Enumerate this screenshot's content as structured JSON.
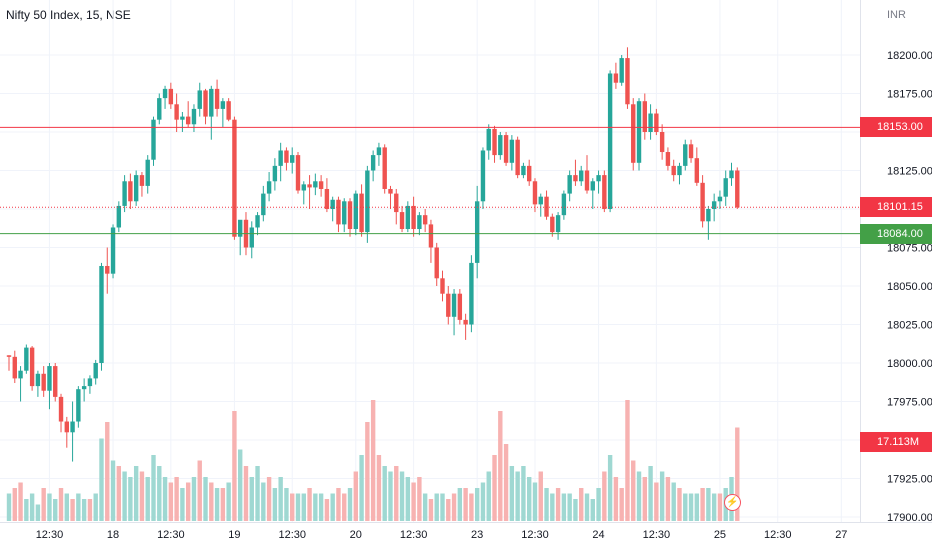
{
  "title": "Nifty 50 Index, 15, NSE",
  "currency": "INR",
  "colors": {
    "up": "#26a69a",
    "down": "#ef5350",
    "vol_up": "#9fd8d2",
    "vol_down": "#f7b2b1",
    "resistance": "#f23645",
    "support": "#43a047",
    "last_price": "#f23645",
    "volume_badge": "#f23645"
  },
  "badges": {
    "resistance": "18153.00",
    "last_price": "18101.15",
    "support": "18084.00",
    "volume": "17.113M"
  },
  "chart_data": {
    "type": "candlestick",
    "title": "Nifty 50 Index, 15, NSE",
    "currency": "INR",
    "y_ticks": [
      17900,
      17925,
      17950,
      17975,
      18000,
      18025,
      18050,
      18075,
      18100,
      18125,
      18150,
      18175,
      18200
    ],
    "y_tick_labels": [
      "17900.00",
      "17925.00",
      "17950.00",
      "17975.00",
      "18000.00",
      "18025.00",
      "18050.00",
      "18075.00",
      "18100.00",
      "18125.00",
      "18150.00",
      "18175.00",
      "18200.00"
    ],
    "ylim": [
      17900,
      18220
    ],
    "x_tick_labels": [
      "12:30",
      "18",
      "12:30",
      "19",
      "12:30",
      "20",
      "12:30",
      "23",
      "12:30",
      "24",
      "12:30",
      "25",
      "12:30",
      "27"
    ],
    "x_tick_bar_index": [
      7,
      18,
      28,
      39,
      49,
      60,
      70,
      81,
      91,
      102,
      112,
      123,
      133,
      144
    ],
    "horizontal_lines": [
      {
        "label": "resistance",
        "value": 18153.0,
        "style": "solid"
      },
      {
        "label": "support",
        "value": 18084.0,
        "style": "solid"
      },
      {
        "label": "last_price",
        "value": 18101.15,
        "style": "dotted"
      }
    ],
    "last_volume": "17.113M",
    "candles": [
      [
        18005,
        18005,
        17995,
        18004
      ],
      [
        18004,
        18008,
        17987,
        17990
      ],
      [
        17990,
        17998,
        17975,
        17995
      ],
      [
        17995,
        18012,
        17993,
        18010
      ],
      [
        18010,
        18011,
        17982,
        17985
      ],
      [
        17985,
        17995,
        17978,
        17993
      ],
      [
        17993,
        17998,
        17978,
        17982
      ],
      [
        17982,
        18000,
        17970,
        17998
      ],
      [
        17998,
        18000,
        17975,
        17978
      ],
      [
        17978,
        17980,
        17955,
        17962
      ],
      [
        17962,
        17965,
        17945,
        17955
      ],
      [
        17955,
        17975,
        17936,
        17962
      ],
      [
        17962,
        17985,
        17958,
        17983
      ],
      [
        17983,
        17990,
        17975,
        17985
      ],
      [
        17985,
        17992,
        17980,
        17990
      ],
      [
        17990,
        18002,
        17986,
        18000
      ],
      [
        18000,
        18065,
        17995,
        18063
      ],
      [
        18063,
        18075,
        18045,
        18058
      ],
      [
        18058,
        18090,
        18055,
        18088
      ],
      [
        18088,
        18105,
        18085,
        18102
      ],
      [
        18102,
        18122,
        18098,
        18118
      ],
      [
        18118,
        18123,
        18100,
        18105
      ],
      [
        18105,
        18125,
        18102,
        18122
      ],
      [
        18122,
        18124,
        18108,
        18115
      ],
      [
        18115,
        18135,
        18110,
        18132
      ],
      [
        18132,
        18160,
        18128,
        18158
      ],
      [
        18158,
        18175,
        18155,
        18172
      ],
      [
        18172,
        18180,
        18165,
        18178
      ],
      [
        18178,
        18182,
        18165,
        18168
      ],
      [
        18168,
        18175,
        18150,
        18158
      ],
      [
        18158,
        18163,
        18150,
        18160
      ],
      [
        18160,
        18170,
        18153,
        18155
      ],
      [
        18155,
        18168,
        18150,
        18165
      ],
      [
        18165,
        18182,
        18160,
        18177
      ],
      [
        18177,
        18178,
        18155,
        18160
      ],
      [
        18160,
        18180,
        18145,
        18178
      ],
      [
        18178,
        18184,
        18160,
        18165
      ],
      [
        18165,
        18172,
        18153,
        18170
      ],
      [
        18170,
        18172,
        18157,
        18158
      ],
      [
        18158,
        18160,
        18080,
        18082
      ],
      [
        18082,
        18090,
        18070,
        18093
      ],
      [
        18093,
        18098,
        18070,
        18075
      ],
      [
        18075,
        18092,
        18068,
        18088
      ],
      [
        18088,
        18098,
        18083,
        18096
      ],
      [
        18096,
        18115,
        18092,
        18110
      ],
      [
        18110,
        18124,
        18105,
        18118
      ],
      [
        18118,
        18133,
        18112,
        18128
      ],
      [
        18128,
        18143,
        18118,
        18138
      ],
      [
        18138,
        18140,
        18125,
        18130
      ],
      [
        18130,
        18140,
        18123,
        18135
      ],
      [
        18135,
        18137,
        18110,
        18112
      ],
      [
        18112,
        18118,
        18103,
        18116
      ],
      [
        18116,
        18122,
        18100,
        18114
      ],
      [
        18114,
        18123,
        18109,
        18118
      ],
      [
        18118,
        18122,
        18108,
        18113
      ],
      [
        18113,
        18120,
        18098,
        18100
      ],
      [
        18100,
        18108,
        18092,
        18106
      ],
      [
        18106,
        18108,
        18085,
        18090
      ],
      [
        18090,
        18107,
        18085,
        18105
      ],
      [
        18105,
        18107,
        18082,
        18087
      ],
      [
        18087,
        18112,
        18083,
        18110
      ],
      [
        18110,
        18116,
        18082,
        18085
      ],
      [
        18085,
        18128,
        18078,
        18125
      ],
      [
        18125,
        18138,
        18118,
        18135
      ],
      [
        18135,
        18143,
        18128,
        18140
      ],
      [
        18140,
        18142,
        18110,
        18113
      ],
      [
        18113,
        18115,
        18100,
        18110
      ],
      [
        18110,
        18113,
        18090,
        18098
      ],
      [
        18098,
        18102,
        18085,
        18087
      ],
      [
        18087,
        18105,
        18085,
        18102
      ],
      [
        18102,
        18108,
        18082,
        18087
      ],
      [
        18087,
        18098,
        18083,
        18096
      ],
      [
        18096,
        18100,
        18085,
        18090
      ],
      [
        18090,
        18093,
        18065,
        18075
      ],
      [
        18075,
        18078,
        18050,
        18055
      ],
      [
        18055,
        18060,
        18040,
        18045
      ],
      [
        18045,
        18050,
        18025,
        18030
      ],
      [
        18030,
        18048,
        18018,
        18045
      ],
      [
        18045,
        18048,
        18025,
        18028
      ],
      [
        18028,
        18032,
        18015,
        18025
      ],
      [
        18025,
        18070,
        18020,
        18065
      ],
      [
        18065,
        18115,
        18055,
        18105
      ],
      [
        18105,
        18140,
        18100,
        18138
      ],
      [
        18138,
        18155,
        18132,
        18152
      ],
      [
        18152,
        18154,
        18130,
        18135
      ],
      [
        18135,
        18150,
        18132,
        18148
      ],
      [
        18148,
        18150,
        18128,
        18130
      ],
      [
        18130,
        18148,
        18125,
        18145
      ],
      [
        18145,
        18147,
        18120,
        18122
      ],
      [
        18122,
        18130,
        18120,
        18128
      ],
      [
        18128,
        18132,
        18115,
        18118
      ],
      [
        18118,
        18120,
        18098,
        18103
      ],
      [
        18103,
        18110,
        18095,
        18108
      ],
      [
        18108,
        18112,
        18093,
        18095
      ],
      [
        18095,
        18097,
        18082,
        18085
      ],
      [
        18085,
        18098,
        18080,
        18096
      ],
      [
        18096,
        18112,
        18093,
        18110
      ],
      [
        18110,
        18125,
        18105,
        18122
      ],
      [
        18122,
        18132,
        18115,
        18118
      ],
      [
        18118,
        18128,
        18115,
        18125
      ],
      [
        18125,
        18135,
        18110,
        18112
      ],
      [
        18112,
        18120,
        18100,
        18118
      ],
      [
        18118,
        18125,
        18110,
        18122
      ],
      [
        18122,
        18125,
        18098,
        18100
      ],
      [
        18100,
        18190,
        18098,
        18188
      ],
      [
        18188,
        18195,
        18178,
        18182
      ],
      [
        18182,
        18200,
        18180,
        18198
      ],
      [
        18198,
        18205,
        18165,
        18168
      ],
      [
        18168,
        18172,
        18125,
        18130
      ],
      [
        18130,
        18172,
        18125,
        18170
      ],
      [
        18170,
        18175,
        18145,
        18150
      ],
      [
        18150,
        18168,
        18145,
        18162
      ],
      [
        18162,
        18165,
        18148,
        18150
      ],
      [
        18150,
        18155,
        18132,
        18137
      ],
      [
        18137,
        18140,
        18125,
        18128
      ],
      [
        18128,
        18132,
        18118,
        18122
      ],
      [
        18122,
        18130,
        18116,
        18128
      ],
      [
        18128,
        18145,
        18125,
        18142
      ],
      [
        18142,
        18145,
        18130,
        18133
      ],
      [
        18133,
        18140,
        18115,
        18117
      ],
      [
        18117,
        18122,
        18088,
        18092
      ],
      [
        18092,
        18102,
        18080,
        18100
      ],
      [
        18100,
        18110,
        18092,
        18105
      ],
      [
        18105,
        18112,
        18100,
        18108
      ],
      [
        18108,
        18125,
        18102,
        18120
      ],
      [
        18120,
        18130,
        18115,
        18125
      ],
      [
        18125,
        18127,
        18100,
        18101
      ]
    ],
    "volume": [
      [
        5,
        "up"
      ],
      [
        6,
        "down"
      ],
      [
        7,
        "down"
      ],
      [
        4,
        "up"
      ],
      [
        5,
        "up"
      ],
      [
        3,
        "up"
      ],
      [
        6,
        "down"
      ],
      [
        5,
        "up"
      ],
      [
        4,
        "up"
      ],
      [
        6,
        "down"
      ],
      [
        5,
        "up"
      ],
      [
        4,
        "down"
      ],
      [
        5,
        "up"
      ],
      [
        4,
        "up"
      ],
      [
        4,
        "down"
      ],
      [
        5,
        "up"
      ],
      [
        15,
        "up"
      ],
      [
        18,
        "down"
      ],
      [
        11,
        "up"
      ],
      [
        10,
        "down"
      ],
      [
        9,
        "up"
      ],
      [
        8,
        "up"
      ],
      [
        10,
        "up"
      ],
      [
        9,
        "down"
      ],
      [
        8,
        "up"
      ],
      [
        12,
        "up"
      ],
      [
        10,
        "up"
      ],
      [
        8,
        "up"
      ],
      [
        7,
        "down"
      ],
      [
        8,
        "down"
      ],
      [
        6,
        "up"
      ],
      [
        7,
        "down"
      ],
      [
        8,
        "up"
      ],
      [
        11,
        "down"
      ],
      [
        8,
        "up"
      ],
      [
        7,
        "down"
      ],
      [
        6,
        "up"
      ],
      [
        6,
        "down"
      ],
      [
        7,
        "up"
      ],
      [
        20,
        "down"
      ],
      [
        13,
        "up"
      ],
      [
        10,
        "down"
      ],
      [
        8,
        "up"
      ],
      [
        10,
        "up"
      ],
      [
        7,
        "up"
      ],
      [
        8,
        "down"
      ],
      [
        6,
        "up"
      ],
      [
        8,
        "up"
      ],
      [
        6,
        "up"
      ],
      [
        5,
        "down"
      ],
      [
        5,
        "up"
      ],
      [
        5,
        "up"
      ],
      [
        6,
        "down"
      ],
      [
        5,
        "up"
      ],
      [
        5,
        "up"
      ],
      [
        4,
        "down"
      ],
      [
        5,
        "up"
      ],
      [
        6,
        "down"
      ],
      [
        5,
        "down"
      ],
      [
        6,
        "up"
      ],
      [
        9,
        "down"
      ],
      [
        12,
        "up"
      ],
      [
        18,
        "down"
      ],
      [
        22,
        "down"
      ],
      [
        12,
        "down"
      ],
      [
        10,
        "up"
      ],
      [
        9,
        "up"
      ],
      [
        10,
        "down"
      ],
      [
        9,
        "up"
      ],
      [
        8,
        "up"
      ],
      [
        7,
        "down"
      ],
      [
        8,
        "down"
      ],
      [
        5,
        "up"
      ],
      [
        4,
        "down"
      ],
      [
        5,
        "up"
      ],
      [
        5,
        "up"
      ],
      [
        4,
        "down"
      ],
      [
        5,
        "down"
      ],
      [
        6,
        "up"
      ],
      [
        6,
        "down"
      ],
      [
        5,
        "down"
      ],
      [
        6,
        "up"
      ],
      [
        7,
        "up"
      ],
      [
        9,
        "up"
      ],
      [
        12,
        "down"
      ],
      [
        20,
        "down"
      ],
      [
        14,
        "down"
      ],
      [
        10,
        "up"
      ],
      [
        9,
        "up"
      ],
      [
        10,
        "up"
      ],
      [
        8,
        "up"
      ],
      [
        7,
        "up"
      ],
      [
        9,
        "down"
      ],
      [
        6,
        "up"
      ],
      [
        5,
        "up"
      ],
      [
        6,
        "down"
      ],
      [
        5,
        "up"
      ],
      [
        5,
        "up"
      ],
      [
        4,
        "up"
      ],
      [
        6,
        "down"
      ],
      [
        5,
        "up"
      ],
      [
        4,
        "up"
      ],
      [
        6,
        "up"
      ],
      [
        9,
        "down"
      ],
      [
        12,
        "up"
      ],
      [
        8,
        "down"
      ],
      [
        6,
        "down"
      ],
      [
        22,
        "down"
      ],
      [
        11,
        "down"
      ],
      [
        9,
        "up"
      ],
      [
        8,
        "down"
      ],
      [
        10,
        "up"
      ],
      [
        7,
        "down"
      ],
      [
        9,
        "up"
      ],
      [
        8,
        "down"
      ],
      [
        7,
        "up"
      ],
      [
        6,
        "down"
      ],
      [
        5,
        "up"
      ],
      [
        5,
        "up"
      ],
      [
        5,
        "up"
      ],
      [
        6,
        "down"
      ],
      [
        6,
        "up"
      ],
      [
        5,
        "up"
      ],
      [
        5,
        "down"
      ],
      [
        6,
        "up"
      ],
      [
        8,
        "up"
      ],
      [
        17,
        "down"
      ]
    ]
  }
}
